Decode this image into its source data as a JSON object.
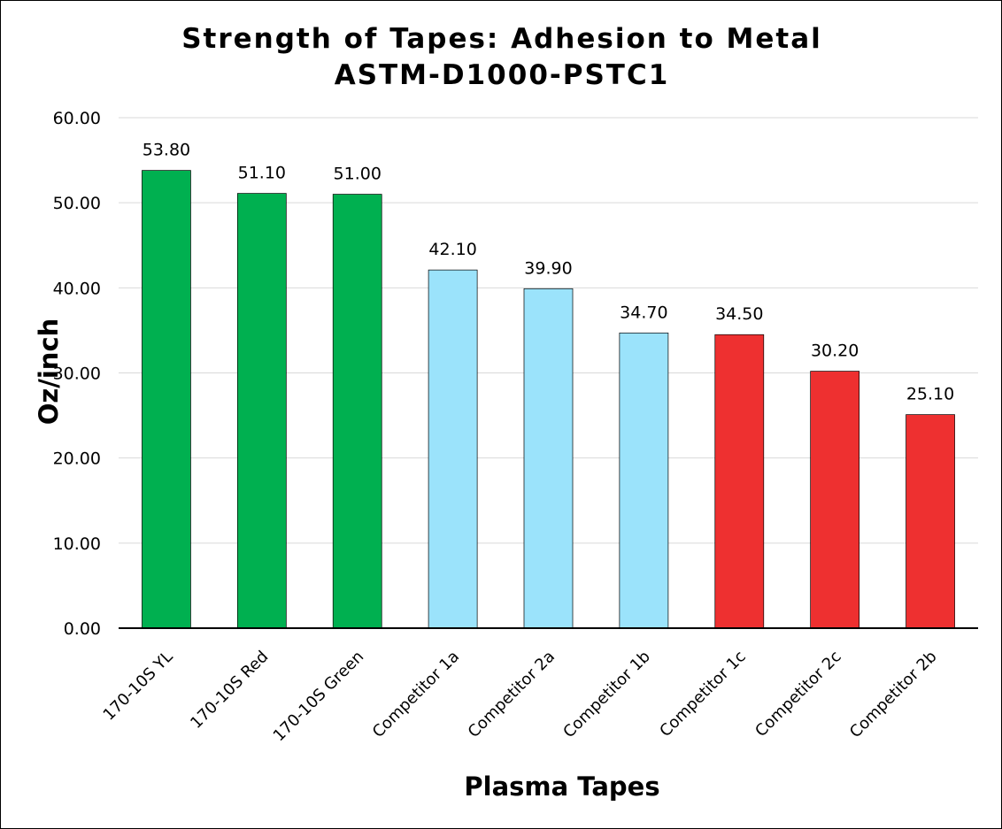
{
  "chart_data": {
    "type": "bar",
    "title": "Strength of Tapes: Adhesion to Metal",
    "subtitle": "ASTM-D1000-PSTC1",
    "xlabel": "Plasma Tapes",
    "ylabel": "Oz/inch",
    "ylim": [
      0,
      60
    ],
    "yticks": [
      "0.00",
      "10.00",
      "20.00",
      "30.00",
      "40.00",
      "50.00",
      "60.00"
    ],
    "grid": true,
    "categories": [
      "170-10S YL",
      "170-10S Red",
      "170-10S Green",
      "Competitor 1a",
      "Competitor 2a",
      "Competitor 1b",
      "Competitor 1c",
      "Competitor 2c",
      "Competitor 2b"
    ],
    "values": [
      53.8,
      51.1,
      51.0,
      42.1,
      39.9,
      34.7,
      34.5,
      30.2,
      25.1
    ],
    "data_labels": [
      "53.80",
      "51.10",
      "51.00",
      "42.10",
      "39.90",
      "34.70",
      "34.50",
      "30.20",
      "25.10"
    ],
    "bar_colors": [
      "#00b050",
      "#00b050",
      "#00b050",
      "#9be3fb",
      "#9be3fb",
      "#9be3fb",
      "#ee3030",
      "#ee3030",
      "#ee3030"
    ]
  }
}
